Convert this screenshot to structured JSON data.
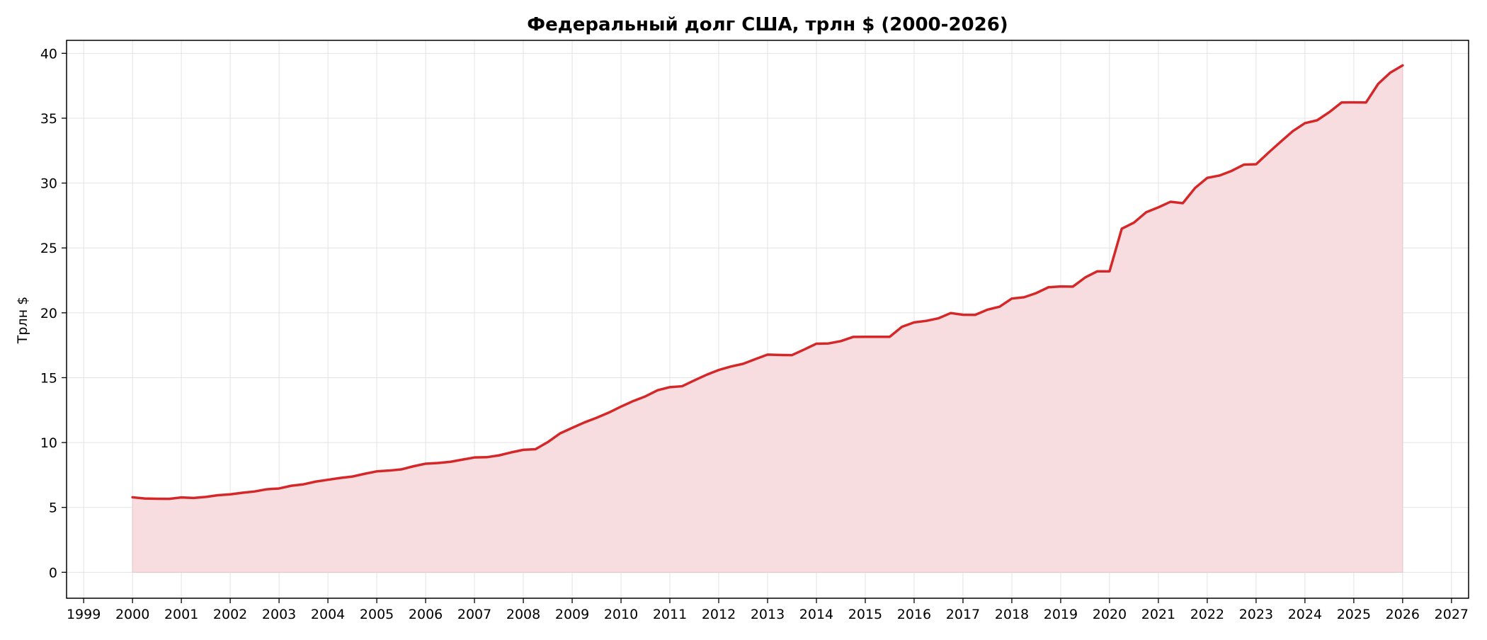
{
  "chart_data": {
    "type": "area",
    "title": "Федеральный долг США, трлн $ (2000-2026)",
    "xlabel": "",
    "ylabel": "Трлн $",
    "xlim": [
      1998.65,
      2027.35
    ],
    "ylim": [
      -2.0,
      41.0
    ],
    "x_ticks": [
      1999,
      2000,
      2001,
      2002,
      2003,
      2004,
      2005,
      2006,
      2007,
      2008,
      2009,
      2010,
      2011,
      2012,
      2013,
      2014,
      2015,
      2016,
      2017,
      2018,
      2019,
      2020,
      2021,
      2022,
      2023,
      2024,
      2025,
      2026,
      2027
    ],
    "y_ticks": [
      0,
      5,
      10,
      15,
      20,
      25,
      30,
      35,
      40
    ],
    "grid": true,
    "legend": "none",
    "colors": {
      "line": "#d62728",
      "fill": "#f7dde0"
    },
    "series": [
      {
        "x": [
          2000.0,
          2000.25,
          2000.5,
          2000.75,
          2001.0,
          2001.25,
          2001.5,
          2001.75,
          2002.0,
          2002.25,
          2002.5,
          2002.75,
          2003.0,
          2003.25,
          2003.5,
          2003.75,
          2004.0,
          2004.25,
          2004.5,
          2004.75,
          2005.0,
          2005.25,
          2005.5,
          2005.75,
          2006.0,
          2006.25,
          2006.5,
          2006.75,
          2007.0,
          2007.25,
          2007.5,
          2007.75,
          2008.0,
          2008.25,
          2008.5,
          2008.75,
          2009.0,
          2009.25,
          2009.5,
          2009.75,
          2010.0,
          2010.25,
          2010.5,
          2010.75,
          2011.0,
          2011.25,
          2011.5,
          2011.75,
          2012.0,
          2012.25,
          2012.5,
          2012.75,
          2013.0,
          2013.25,
          2013.5,
          2013.75,
          2014.0,
          2014.25,
          2014.5,
          2014.75,
          2015.0,
          2015.25,
          2015.5,
          2015.75,
          2016.0,
          2016.25,
          2016.5,
          2016.75,
          2017.0,
          2017.25,
          2017.5,
          2017.75,
          2018.0,
          2018.25,
          2018.5,
          2018.75,
          2019.0,
          2019.25,
          2019.5,
          2019.75,
          2020.0,
          2020.25,
          2020.5,
          2020.75,
          2021.0,
          2021.25,
          2021.5,
          2021.75,
          2022.0,
          2022.25,
          2022.5,
          2022.75,
          2023.0,
          2023.25,
          2023.5,
          2023.75,
          2024.0,
          2024.25,
          2024.5,
          2024.75,
          2025.0,
          2025.25,
          2025.5,
          2025.75,
          2026.0
        ],
        "values": [
          5.78,
          5.69,
          5.67,
          5.66,
          5.77,
          5.73,
          5.81,
          5.94,
          6.01,
          6.13,
          6.23,
          6.4,
          6.46,
          6.67,
          6.78,
          6.99,
          7.13,
          7.27,
          7.38,
          7.59,
          7.78,
          7.84,
          7.93,
          8.17,
          8.37,
          8.42,
          8.51,
          8.68,
          8.85,
          8.87,
          9.01,
          9.24,
          9.44,
          9.49,
          10.03,
          10.7,
          11.13,
          11.55,
          11.91,
          12.31,
          12.77,
          13.2,
          13.56,
          14.03,
          14.27,
          14.34,
          14.79,
          15.22,
          15.59,
          15.86,
          16.07,
          16.43,
          16.78,
          16.75,
          16.74,
          17.17,
          17.62,
          17.64,
          17.82,
          18.14,
          18.15,
          18.15,
          18.15,
          18.92,
          19.26,
          19.38,
          19.58,
          19.98,
          19.85,
          19.84,
          20.24,
          20.47,
          21.1,
          21.2,
          21.52,
          21.97,
          22.03,
          22.02,
          22.72,
          23.2,
          23.2,
          26.48,
          26.95,
          27.75,
          28.13,
          28.56,
          28.45,
          29.62,
          30.4,
          30.58,
          30.94,
          31.42,
          31.45,
          32.33,
          33.17,
          34.0,
          34.62,
          34.84,
          35.47,
          36.21,
          36.22,
          36.21,
          37.65,
          38.52,
          39.07
        ]
      }
    ]
  }
}
